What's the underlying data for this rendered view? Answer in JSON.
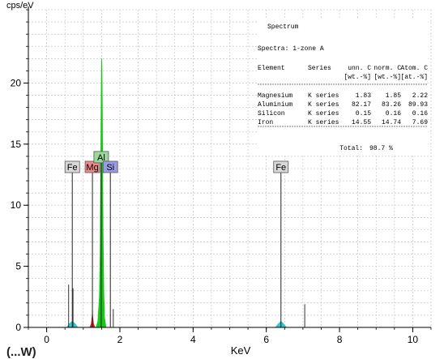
{
  "chart_data": {
    "type": "area",
    "y_unit": "cps/eV",
    "xlabel": "KeV",
    "xlim": [
      -0.5,
      10.5
    ],
    "ylim": [
      0,
      26
    ],
    "x_ticks": [
      {
        "value": 0,
        "label": "0"
      },
      {
        "value": 2,
        "label": "2"
      },
      {
        "value": 4,
        "label": "4"
      },
      {
        "value": 6,
        "label": "6"
      },
      {
        "value": 8,
        "label": "8"
      },
      {
        "value": 10,
        "label": "10"
      }
    ],
    "y_ticks": [
      {
        "value": 0,
        "label": "0"
      },
      {
        "value": 5,
        "label": "5"
      },
      {
        "value": 10,
        "label": "10"
      },
      {
        "value": 15,
        "label": "15"
      },
      {
        "value": 20,
        "label": "20"
      }
    ],
    "grid": true,
    "series": [
      {
        "color": "#18c818",
        "x": [
          1.35,
          1.4,
          1.44,
          1.46,
          1.47,
          1.48,
          1.49,
          1.5,
          1.51,
          1.52,
          1.53,
          1.54,
          1.56,
          1.58,
          1.62
        ],
        "y": [
          0,
          0.5,
          2.5,
          6,
          10,
          15,
          19,
          22,
          21.5,
          18,
          13,
          8,
          3,
          0.8,
          0
        ]
      },
      {
        "color": "#cc2222",
        "x": [
          1.18,
          1.22,
          1.25,
          1.28,
          1.32
        ],
        "y": [
          0,
          0.3,
          1.1,
          0.3,
          0
        ]
      },
      {
        "color": "#30c8d0",
        "x": [
          0.55,
          0.62,
          0.7,
          0.78,
          0.85
        ],
        "y": [
          0,
          0.3,
          0.5,
          0.3,
          0
        ]
      },
      {
        "color": "#30c8d0",
        "x": [
          6.25,
          6.33,
          6.4,
          6.47,
          6.55
        ],
        "y": [
          0,
          0.3,
          0.5,
          0.3,
          0
        ]
      }
    ],
    "marker_lines": [
      {
        "x": 0.6,
        "y": 3.5,
        "color": "#333333"
      },
      {
        "x": 0.72,
        "y": 3.2,
        "color": "#333333"
      },
      {
        "x": 1.25,
        "y": 1.4,
        "color": "#333333"
      },
      {
        "x": 1.82,
        "y": 1.5,
        "color": "#333333"
      },
      {
        "x": 7.05,
        "y": 1.9,
        "color": "#333333"
      }
    ],
    "element_markers": [
      {
        "label": "Fe",
        "x": 0.7,
        "y": 13.2,
        "box_color": "#d9d9d9"
      },
      {
        "label": "Mg",
        "x": 1.25,
        "y": 13.2,
        "box_color": "#f08a8a"
      },
      {
        "label": "Al",
        "x": 1.49,
        "y": 14.0,
        "box_color": "#9ad99a"
      },
      {
        "label": "Si",
        "x": 1.74,
        "y": 13.2,
        "box_color": "#9a9ae8"
      },
      {
        "label": "Fe",
        "x": 6.4,
        "y": 13.2,
        "box_color": "#d9d9d9"
      }
    ],
    "table": {
      "title": "Spectrum",
      "subtitle": "Spectra: 1-zone A",
      "headers": [
        "Element",
        "Series",
        "unn. C",
        "norm. C",
        "Atom. C"
      ],
      "units": [
        "",
        "",
        "[wt.-%]",
        "[wt.-%]",
        "[at.-%]"
      ],
      "rows": [
        [
          "Magnesium",
          "K series",
          "1.83",
          "1.85",
          "2.22"
        ],
        [
          "Aluminium",
          "K series",
          "82.17",
          "83.26",
          "89.93"
        ],
        [
          "Silicon",
          "K series",
          "0.15",
          "0.16",
          "0.16"
        ],
        [
          "Iron",
          "K series",
          "14.55",
          "14.74",
          "7.69"
        ]
      ],
      "total_label": "Total:",
      "total_value": "98.7 %"
    }
  },
  "footer_fragment": "(...W)"
}
